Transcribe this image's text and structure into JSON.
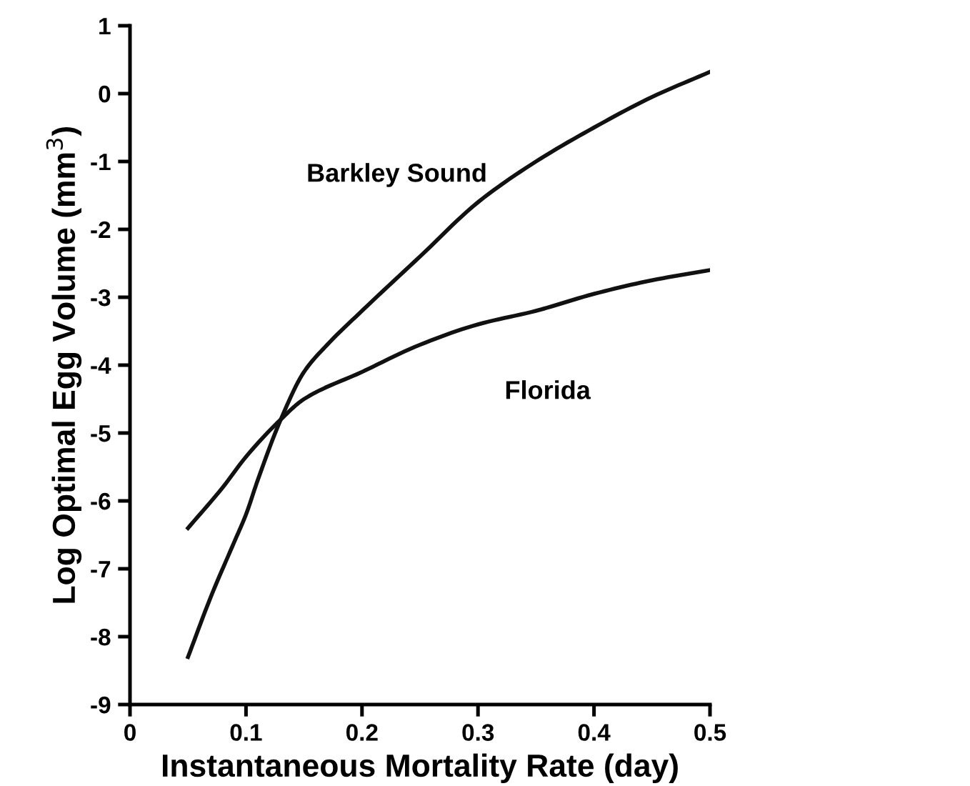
{
  "chart_data": {
    "type": "line",
    "xlabel": "Instantaneous Mortality Rate (day)",
    "ylabel": "Log Optimal Egg Volume (mm$^{3}$)",
    "xlim": [
      0,
      0.5
    ],
    "xticks": [
      0,
      0.1,
      0.2,
      0.3,
      0.4,
      0.5
    ],
    "ylim": [
      -9,
      1
    ],
    "yticks": [
      -9,
      -8,
      -7,
      -6,
      -5,
      -4,
      -3,
      -2,
      -1,
      0,
      1
    ],
    "grid": false,
    "legend": false,
    "marker": "none",
    "line_style": "solid",
    "series": [
      {
        "name": "Barkley Sound",
        "color": "#111111",
        "x": [
          0.05,
          0.07,
          0.09,
          0.1,
          0.11,
          0.13,
          0.15,
          0.17,
          0.2,
          0.25,
          0.3,
          0.35,
          0.4,
          0.45,
          0.5
        ],
        "values": [
          -8.3,
          -7.4,
          -6.6,
          -6.2,
          -5.7,
          -4.8,
          -4.1,
          -3.7,
          -3.2,
          -2.4,
          -1.6,
          -1.0,
          -0.5,
          -0.05,
          0.32
        ]
      },
      {
        "name": "Florida",
        "color": "#111111",
        "x": [
          0.05,
          0.08,
          0.1,
          0.13,
          0.15,
          0.2,
          0.25,
          0.3,
          0.35,
          0.4,
          0.45,
          0.5
        ],
        "values": [
          -6.4,
          -5.8,
          -5.35,
          -4.8,
          -4.5,
          -4.1,
          -3.7,
          -3.4,
          -3.2,
          -2.95,
          -2.75,
          -2.6
        ]
      }
    ]
  }
}
